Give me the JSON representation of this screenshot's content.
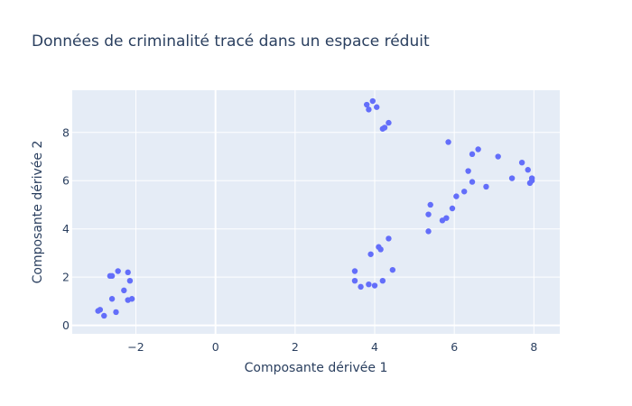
{
  "chart_data": {
    "type": "scatter",
    "title": "Données de criminalité tracé dans un espace réduit",
    "xlabel": "Composante dérivée 1",
    "ylabel": "Composante dérivée 2",
    "xlim": [
      -3.6,
      8.65
    ],
    "ylim": [
      -0.35,
      9.75
    ],
    "xticks": [
      -2,
      0,
      2,
      4,
      6,
      8
    ],
    "yticks": [
      0,
      2,
      4,
      6,
      8
    ],
    "grid": true,
    "colors": {
      "marker": "#636efa",
      "plot_bg": "#e5ecf6",
      "grid": "#ffffff",
      "text": "#2a3f5f"
    },
    "series": [
      {
        "x": [
          -2.95,
          -2.9,
          -2.8,
          -2.5,
          -2.6,
          -2.3,
          -2.2,
          -2.1,
          -2.6,
          -2.65,
          -2.45,
          -2.2,
          -2.15,
          3.5,
          3.65,
          3.85,
          4.0,
          4.2,
          4.45,
          3.5,
          3.9,
          4.15,
          4.1,
          4.35,
          3.8,
          3.95,
          3.85,
          4.05,
          4.35,
          4.25,
          4.2,
          5.35,
          5.35,
          5.4,
          5.7,
          5.8,
          5.95,
          6.05,
          6.25,
          6.45,
          6.35,
          6.8,
          5.85,
          6.45,
          6.6,
          7.1,
          7.45,
          7.7,
          7.85,
          7.95,
          7.9,
          7.95
        ],
        "y": [
          0.6,
          0.65,
          0.4,
          0.55,
          1.1,
          1.45,
          1.05,
          1.1,
          2.05,
          2.05,
          2.25,
          2.2,
          1.85,
          1.85,
          1.6,
          1.7,
          1.65,
          1.85,
          2.3,
          2.25,
          2.95,
          3.15,
          3.25,
          3.6,
          9.15,
          9.3,
          8.95,
          9.05,
          8.4,
          8.2,
          8.15,
          3.9,
          4.6,
          5.0,
          4.35,
          4.45,
          4.85,
          5.35,
          5.55,
          5.95,
          6.4,
          5.75,
          7.6,
          7.1,
          7.3,
          7.0,
          6.1,
          6.75,
          6.45,
          6.1,
          5.9,
          6.0
        ]
      }
    ]
  }
}
